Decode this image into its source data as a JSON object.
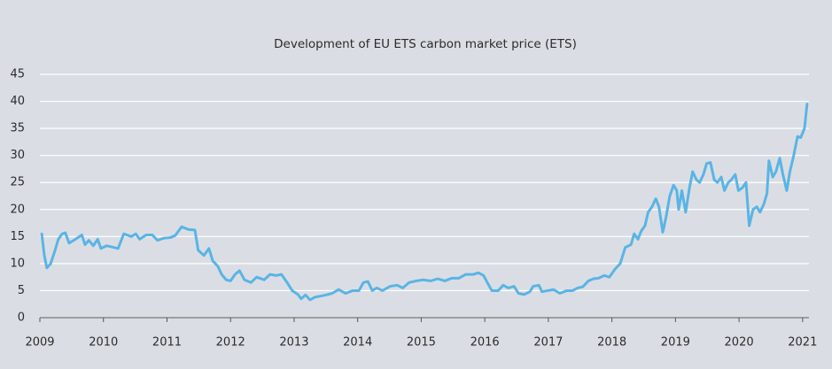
{
  "chart_data": {
    "type": "line",
    "title": "Development of EU ETS carbon market price (ETS)",
    "xlim": [
      2009,
      2021.1
    ],
    "xticks": [
      2009,
      2010,
      2011,
      2012,
      2013,
      2014,
      2015,
      2016,
      2017,
      2018,
      2019,
      2020,
      2021
    ],
    "ylim": [
      0,
      45
    ],
    "yticks": [
      0,
      5,
      10,
      15,
      20,
      25,
      30,
      35,
      40,
      45
    ],
    "grid": true,
    "series": [
      {
        "color": "#5ab4e5",
        "x": [
          2009.03,
          2009.07,
          2009.11,
          2009.17,
          2009.24,
          2009.29,
          2009.35,
          2009.4,
          2009.46,
          2009.56,
          2009.66,
          2009.71,
          2009.77,
          2009.84,
          2009.91,
          2009.96,
          2010.05,
          2010.16,
          2010.23,
          2010.32,
          2010.44,
          2010.51,
          2010.57,
          2010.67,
          2010.77,
          2010.85,
          2010.95,
          2011.05,
          2011.13,
          2011.23,
          2011.34,
          2011.44,
          2011.49,
          2011.58,
          2011.66,
          2011.72,
          2011.8,
          2011.86,
          2011.93,
          2012.0,
          2012.07,
          2012.14,
          2012.22,
          2012.32,
          2012.41,
          2012.53,
          2012.62,
          2012.72,
          2012.8,
          2012.89,
          2012.97,
          2013.06,
          2013.11,
          2013.18,
          2013.25,
          2013.33,
          2013.42,
          2013.5,
          2013.6,
          2013.7,
          2013.81,
          2013.92,
          2014.02,
          2014.09,
          2014.16,
          2014.23,
          2014.3,
          2014.39,
          2014.51,
          2014.62,
          2014.71,
          2014.81,
          2014.92,
          2015.03,
          2015.15,
          2015.26,
          2015.37,
          2015.48,
          2015.59,
          2015.7,
          2015.82,
          2015.9,
          2015.98,
          2016.04,
          2016.11,
          2016.21,
          2016.29,
          2016.37,
          2016.46,
          2016.53,
          2016.62,
          2016.71,
          2016.76,
          2016.85,
          2016.9,
          2016.99,
          2017.08,
          2017.18,
          2017.29,
          2017.38,
          2017.46,
          2017.54,
          2017.63,
          2017.71,
          2017.79,
          2017.88,
          2017.96,
          2018.05,
          2018.13,
          2018.21,
          2018.3,
          2018.35,
          2018.41,
          2018.46,
          2018.52,
          2018.57,
          2018.63,
          2018.69,
          2018.74,
          2018.8,
          2018.85,
          2018.91,
          2018.97,
          2019.02,
          2019.05,
          2019.1,
          2019.16,
          2019.22,
          2019.27,
          2019.33,
          2019.38,
          2019.44,
          2019.49,
          2019.55,
          2019.61,
          2019.66,
          2019.72,
          2019.77,
          2019.83,
          2019.88,
          2019.94,
          2019.99,
          2020.05,
          2020.11,
          2020.16,
          2020.22,
          2020.28,
          2020.33,
          2020.39,
          2020.44,
          2020.47,
          2020.53,
          2020.58,
          2020.64,
          2020.69,
          2020.75,
          2020.8,
          2020.86,
          2020.92,
          2020.97,
          2021.03,
          2021.07
        ],
        "values": [
          15.5,
          11.5,
          9.2,
          10,
          12.5,
          14.5,
          15.5,
          15.7,
          13.8,
          14.5,
          15.3,
          13.5,
          14.3,
          13.3,
          14.5,
          12.8,
          13.3,
          13,
          12.8,
          15.5,
          15,
          15.5,
          14.5,
          15.3,
          15.3,
          14.3,
          14.7,
          14.8,
          15.2,
          16.8,
          16.3,
          16.2,
          12.5,
          11.5,
          12.8,
          10.5,
          9.5,
          8,
          7,
          6.8,
          8,
          8.7,
          7,
          6.5,
          7.5,
          7,
          8,
          7.8,
          8,
          6.5,
          5,
          4.3,
          3.5,
          4.2,
          3.3,
          3.8,
          4,
          4.2,
          4.5,
          5.2,
          4.5,
          5,
          5,
          6.5,
          6.7,
          5,
          5.5,
          5,
          5.8,
          6,
          5.5,
          6.5,
          6.8,
          7,
          6.8,
          7.2,
          6.8,
          7.3,
          7.3,
          8,
          8,
          8.3,
          7.8,
          6.5,
          5,
          5,
          6,
          5.5,
          5.8,
          4.5,
          4.3,
          4.8,
          5.8,
          6,
          4.8,
          5,
          5.2,
          4.5,
          5,
          5,
          5.5,
          5.7,
          6.8,
          7.2,
          7.3,
          7.8,
          7.5,
          9,
          10,
          13,
          13.5,
          15.5,
          14.5,
          16,
          17,
          19.5,
          20.5,
          22,
          20.5,
          15.8,
          18.5,
          22.5,
          24.5,
          23.5,
          20,
          23.5,
          19.5,
          24,
          27,
          25.5,
          25,
          26.5,
          28.5,
          28.7,
          25.5,
          25,
          26,
          23.5,
          25,
          25.5,
          26.5,
          23.5,
          24,
          25,
          17,
          20,
          20.5,
          19.5,
          21,
          23,
          29,
          26,
          27,
          29.5,
          26.5,
          23.5,
          27,
          30,
          33.5,
          33.3,
          35,
          39.5
        ]
      }
    ]
  }
}
